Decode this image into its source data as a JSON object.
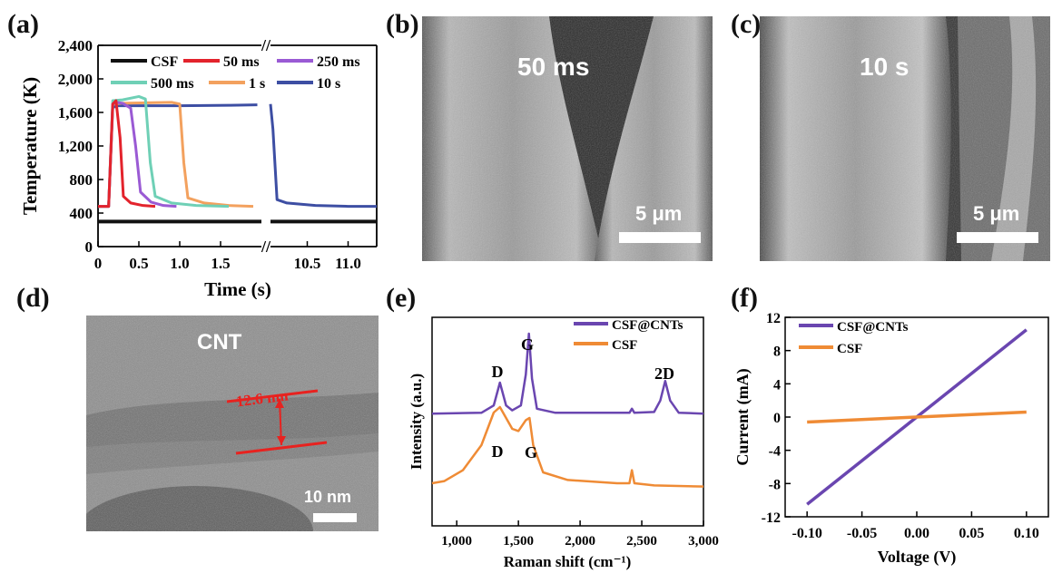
{
  "panels": {
    "a": "(a)",
    "b": "(b)",
    "c": "(c)",
    "d": "(d)",
    "e": "(e)",
    "f": "(f)"
  },
  "images": {
    "b": {
      "title": "50 ms",
      "scale": "5 μm"
    },
    "c": {
      "title": "10 s",
      "scale": "5 μm"
    },
    "d": {
      "title": "CNT",
      "measure": "12.6 nm",
      "scale": "10 nm"
    }
  },
  "colors": {
    "csf": "#111111",
    "ms50": "#e3232c",
    "ms250": "#9a5ad4",
    "ms500": "#6fd0b6",
    "s1": "#f3a15e",
    "s10": "#3d4ea3",
    "cnt": "#6a46b0",
    "csf_orange": "#ef8b35",
    "red_measure": "#e8221f"
  },
  "chart_data": [
    {
      "id": "a",
      "type": "line",
      "ylabel": "Temperature (K)",
      "xlabel": "Time (s)",
      "ylim": [
        0,
        2400
      ],
      "yticks": [
        "0",
        "400",
        "800",
        "1,200",
        "1,600",
        "2,000",
        "2,400"
      ],
      "xticks_left": [
        "0",
        "0.5",
        "1.0",
        "1.5"
      ],
      "xticks_right": [
        "10.5",
        "11.0"
      ],
      "axis_break": "//",
      "legend": [
        "CSF",
        "50 ms",
        "250 ms",
        "500 ms",
        "1 s",
        "10 s"
      ],
      "series": [
        {
          "name": "CSF",
          "x": [
            0,
            2.0,
            10.05,
            11.35
          ],
          "y": [
            298,
            298,
            298,
            298
          ]
        },
        {
          "name": "50 ms",
          "x": [
            0,
            0.13,
            0.18,
            0.22,
            0.27,
            0.31,
            0.4,
            0.55,
            0.7
          ],
          "y": [
            480,
            480,
            1700,
            1740,
            1300,
            600,
            520,
            490,
            480
          ]
        },
        {
          "name": "250 ms",
          "x": [
            0,
            0.13,
            0.18,
            0.22,
            0.3,
            0.4,
            0.46,
            0.52,
            0.65,
            0.8,
            0.96
          ],
          "y": [
            480,
            480,
            1700,
            1720,
            1710,
            1650,
            1200,
            650,
            530,
            490,
            480
          ]
        },
        {
          "name": "500 ms",
          "x": [
            0,
            0.13,
            0.18,
            0.3,
            0.5,
            0.58,
            0.64,
            0.7,
            0.9,
            1.2,
            1.6
          ],
          "y": [
            480,
            480,
            1740,
            1750,
            1790,
            1760,
            1000,
            600,
            520,
            490,
            480
          ]
        },
        {
          "name": "1 s",
          "x": [
            0,
            0.13,
            0.18,
            0.3,
            0.9,
            1.0,
            1.05,
            1.1,
            1.3,
            1.6,
            1.9
          ],
          "y": [
            480,
            480,
            1700,
            1710,
            1720,
            1700,
            1000,
            580,
            520,
            490,
            480
          ]
        },
        {
          "name": "10 s",
          "x": [
            0,
            0.13,
            0.18,
            0.25,
            1.0,
            1.6,
            1.95,
            10.05,
            10.08,
            10.13,
            10.25,
            10.6,
            11.0,
            11.35
          ],
          "y": [
            480,
            480,
            1660,
            1680,
            1680,
            1685,
            1690,
            1700,
            1400,
            560,
            520,
            490,
            480,
            480
          ]
        }
      ]
    },
    {
      "id": "e",
      "type": "line",
      "xlabel": "Raman shift (cm⁻¹)",
      "ylabel": "Intensity (a.u.)",
      "xlim": [
        800,
        3000
      ],
      "xticks": [
        "1,000",
        "1,500",
        "2,000",
        "2,500",
        "3,000"
      ],
      "legend": [
        "CSF@CNTs",
        "CSF"
      ],
      "annotations": [
        "D",
        "G",
        "2D",
        "D",
        "G"
      ],
      "series": [
        {
          "name": "CSF@CNTs",
          "x": [
            800,
            1200,
            1300,
            1350,
            1400,
            1450,
            1520,
            1560,
            1585,
            1610,
            1650,
            1800,
            2400,
            2420,
            2440,
            2600,
            2650,
            2690,
            2730,
            2800,
            3000
          ],
          "y": [
            0.02,
            0.03,
            0.12,
            0.4,
            0.12,
            0.06,
            0.12,
            0.5,
            1.0,
            0.45,
            0.08,
            0.03,
            0.03,
            0.08,
            0.03,
            0.04,
            0.18,
            0.42,
            0.18,
            0.03,
            0.02
          ]
        },
        {
          "name": "CSF",
          "x": [
            800,
            900,
            1050,
            1200,
            1300,
            1350,
            1400,
            1450,
            1500,
            1560,
            1590,
            1620,
            1700,
            1900,
            2300,
            2400,
            2420,
            2440,
            2600,
            3000
          ],
          "y": [
            0.1,
            0.12,
            0.22,
            0.45,
            0.75,
            0.8,
            0.7,
            0.6,
            0.58,
            0.68,
            0.7,
            0.45,
            0.2,
            0.13,
            0.1,
            0.1,
            0.22,
            0.1,
            0.08,
            0.07
          ]
        }
      ]
    },
    {
      "id": "f",
      "type": "line",
      "xlabel": "Voltage (V)",
      "ylabel": "Current (mA)",
      "xlim": [
        -0.12,
        0.12
      ],
      "ylim": [
        -12,
        12
      ],
      "xticks": [
        "-0.10",
        "-0.05",
        "0.00",
        "0.05",
        "0.10"
      ],
      "yticks": [
        "-12",
        "-8",
        "-4",
        "0",
        "4",
        "8",
        "12"
      ],
      "legend": [
        "CSF@CNTs",
        "CSF"
      ],
      "series": [
        {
          "name": "CSF@CNTs",
          "x": [
            -0.1,
            0.1
          ],
          "y": [
            -10.5,
            10.5
          ]
        },
        {
          "name": "CSF",
          "x": [
            -0.1,
            0.1
          ],
          "y": [
            -0.6,
            0.6
          ]
        }
      ]
    }
  ]
}
